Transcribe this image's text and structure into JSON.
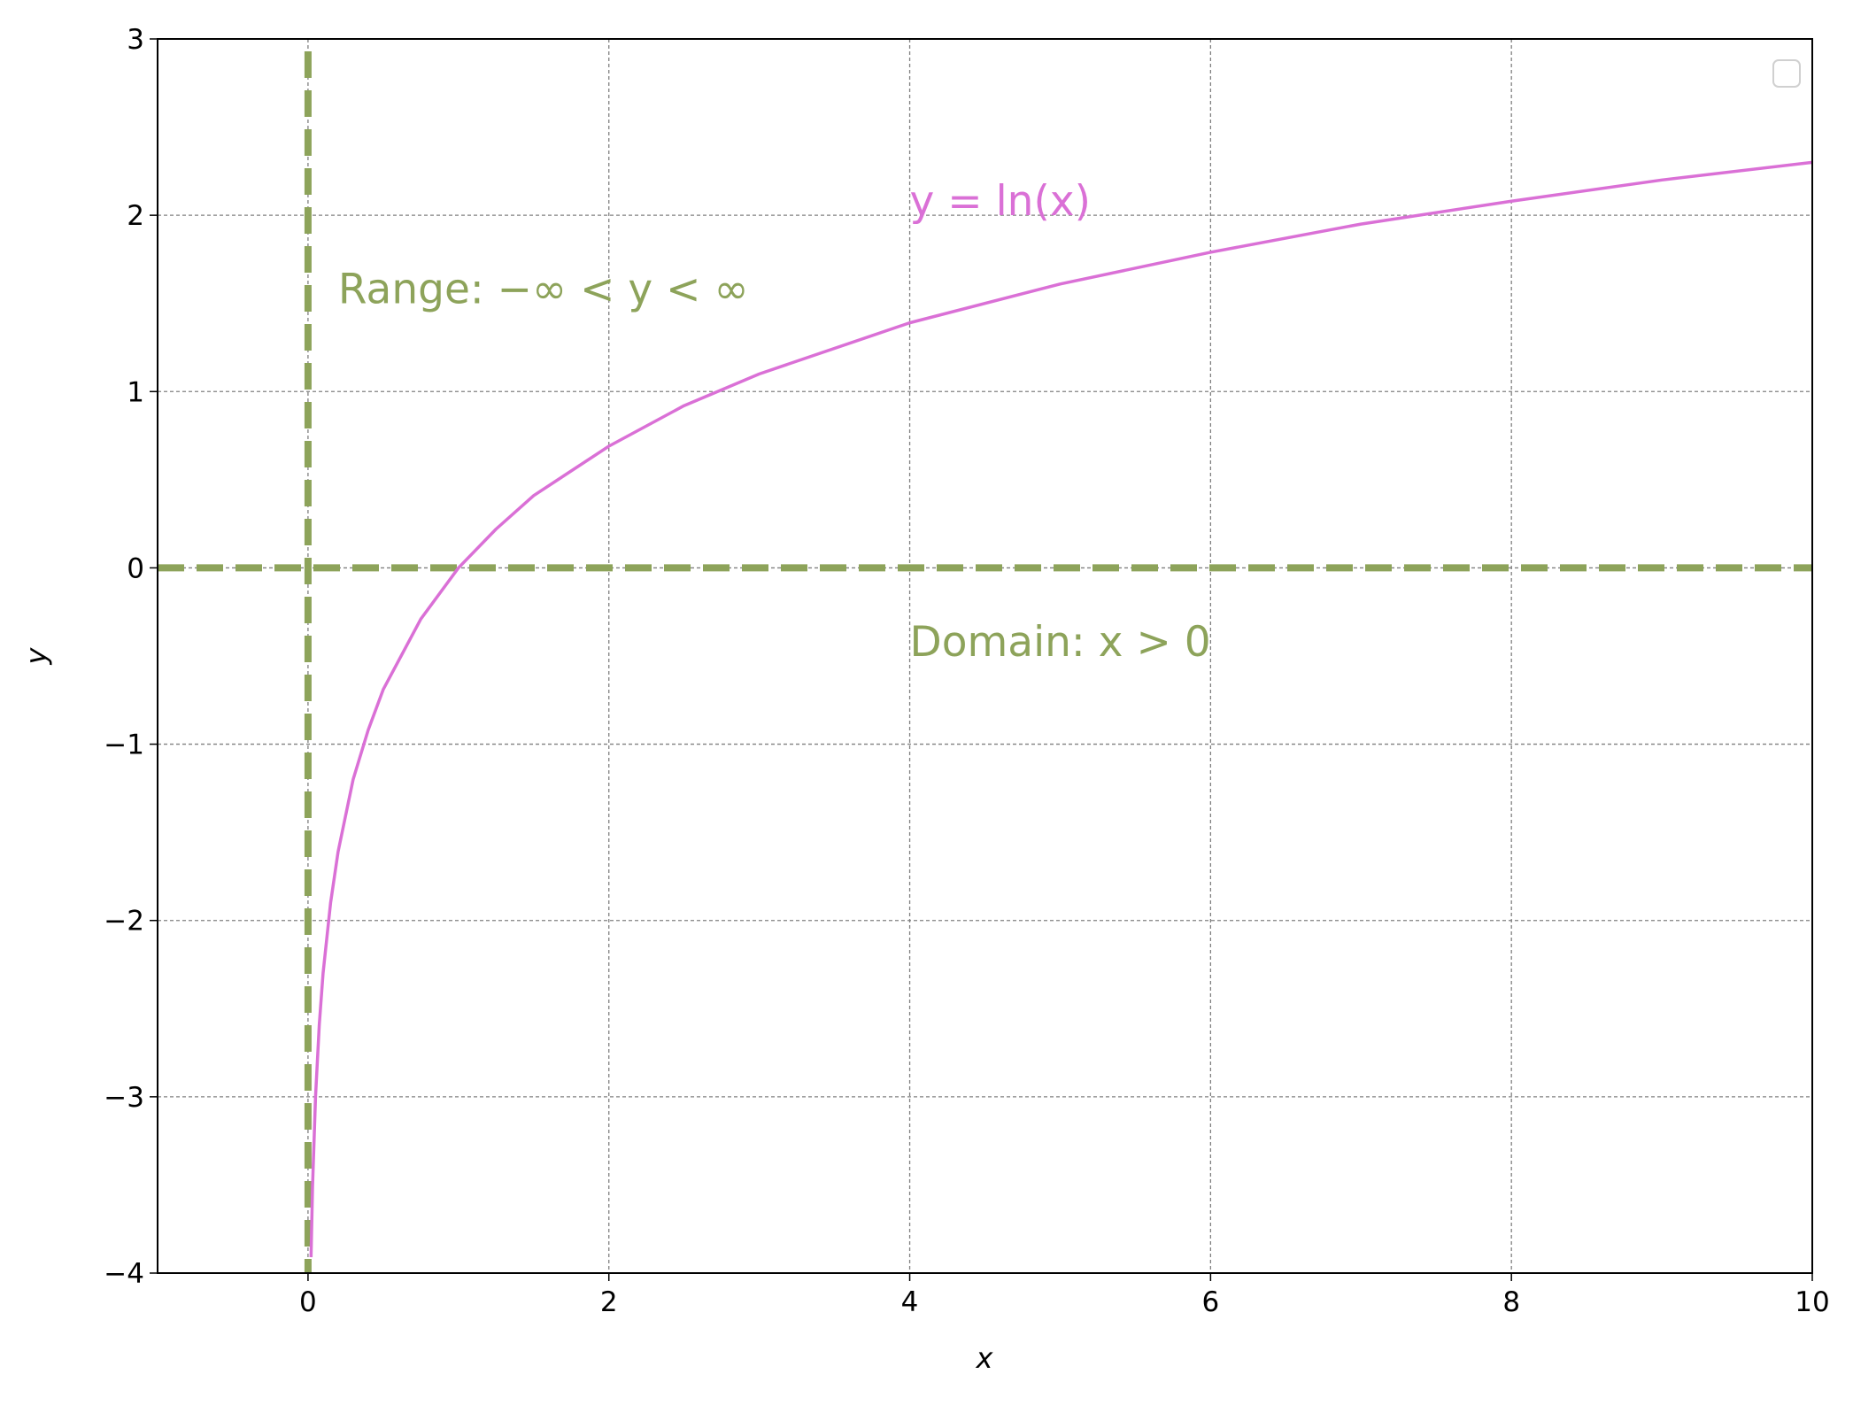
{
  "chart_data": {
    "type": "line",
    "xlabel": "x",
    "ylabel": "y",
    "xlim": [
      -1,
      10
    ],
    "ylim": [
      -4,
      3
    ],
    "xticks": [
      0,
      2,
      4,
      6,
      8,
      10
    ],
    "yticks": [
      {
        "value": -4,
        "label": "−4"
      },
      {
        "value": -3,
        "label": "−3"
      },
      {
        "value": -2,
        "label": "−2"
      },
      {
        "value": -1,
        "label": "−1"
      },
      0,
      1,
      2,
      3
    ],
    "grid": true,
    "series": [
      {
        "color": "#da70d6",
        "x": [
          0.02,
          0.03,
          0.05,
          0.075,
          0.1,
          0.15,
          0.2,
          0.3,
          0.4,
          0.5,
          0.75,
          1,
          1.25,
          1.5,
          2,
          2.5,
          3,
          4,
          5,
          6,
          7,
          8,
          9,
          10
        ],
        "values": [
          -3.91,
          -3.51,
          -3.0,
          -2.59,
          -2.3,
          -1.9,
          -1.61,
          -1.2,
          -0.92,
          -0.69,
          -0.29,
          0,
          0.22,
          0.41,
          0.69,
          0.92,
          1.1,
          1.39,
          1.61,
          1.79,
          1.95,
          2.08,
          2.2,
          2.3
        ]
      }
    ],
    "vlines": [
      {
        "x": 0,
        "color": "#8da35a"
      }
    ],
    "hlines": [
      {
        "y": 0,
        "color": "#8da35a"
      }
    ],
    "annotations": [
      {
        "text": "y = ln(x)",
        "x": 4,
        "y": 2,
        "color": "#da70d6"
      },
      {
        "text": "Range: −∞ < y < ∞",
        "x": 0.2,
        "y": 1.5,
        "color": "#8da35a"
      },
      {
        "text": "Domain: x > 0",
        "x": 4,
        "y": -0.5,
        "color": "#8da35a"
      }
    ]
  }
}
